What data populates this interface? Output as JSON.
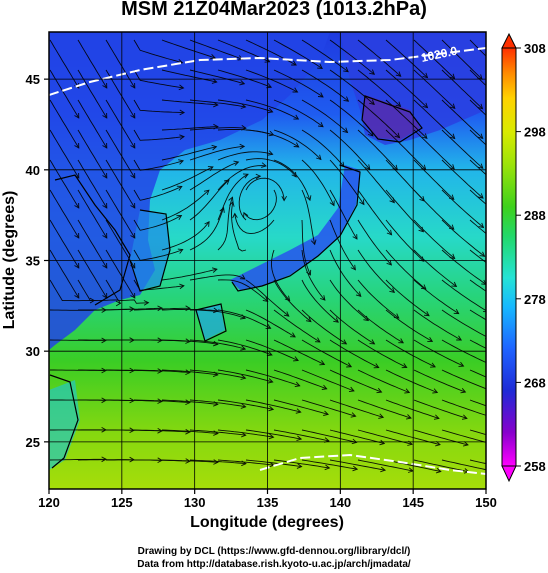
{
  "title": "MSM 21Z04Mar2023 (1013.2hPa)",
  "map": {
    "x_ticks": [
      120,
      125,
      130,
      135,
      140,
      145,
      150
    ],
    "y_ticks": [
      25,
      30,
      35,
      40,
      45
    ],
    "x_range": [
      120,
      150
    ],
    "y_range": [
      22.4,
      47.6
    ],
    "xlabel": "Longitude (degrees)",
    "ylabel": "Latitude  (degrees)",
    "contour_label": "1020.0"
  },
  "colorbar": {
    "ticks": [
      258,
      268,
      278,
      288,
      298,
      308
    ],
    "range": [
      258,
      308
    ],
    "colors": [
      "#ff00ff",
      "#8800cc",
      "#1f2bd6",
      "#1f63ff",
      "#17b8ff",
      "#25e3d6",
      "#22d86a",
      "#3ed11c",
      "#9be30a",
      "#d9ea00",
      "#ffd200",
      "#ff8a00",
      "#ff3000"
    ]
  },
  "footer": {
    "line1": "Drawing by DCL (https://www.gfd-dennou.org/library/dcl/)",
    "line2": "Data from http://database.rish.kyoto-u.ac.jp/arch/jmadata/"
  }
}
